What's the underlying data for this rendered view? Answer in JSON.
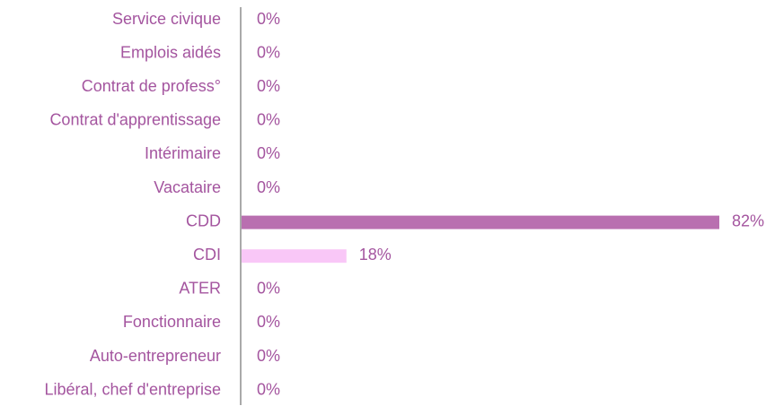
{
  "chart_data": {
    "type": "hbar",
    "categories": [
      "Service civique",
      "Emplois aidés",
      "Contrat de profess°",
      "Contrat d'apprentissage",
      "Intérimaire",
      "Vacataire",
      "CDD",
      "CDI",
      "ATER",
      "Fonctionnaire",
      "Auto-entrepreneur",
      "Libéral, chef d'entreprise"
    ],
    "values": [
      0,
      0,
      0,
      0,
      0,
      0,
      82,
      18,
      0,
      0,
      0,
      0
    ],
    "value_labels": [
      "0%",
      "0%",
      "0%",
      "0%",
      "0%",
      "0%",
      "82%",
      "18%",
      "0%",
      "0%",
      "0%",
      "0%"
    ],
    "colors": [
      "#b96fb0",
      "#b96fb0",
      "#b96fb0",
      "#b96fb0",
      "#b96fb0",
      "#b96fb0",
      "#b96fb0",
      "#f9c7f7",
      "#b96fb0",
      "#b96fb0",
      "#b96fb0",
      "#b96fb0"
    ]
  }
}
